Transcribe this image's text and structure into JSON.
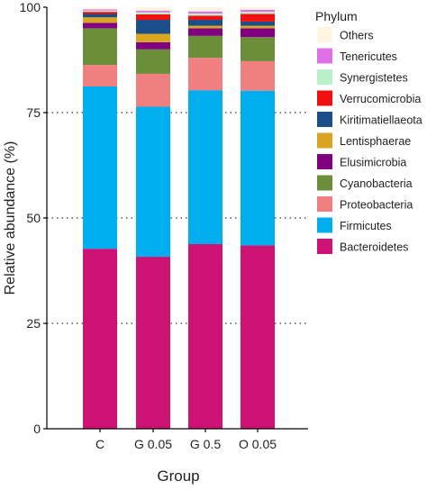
{
  "chart_data": {
    "type": "bar",
    "stacked": true,
    "xlabel": "Group",
    "ylabel": "Relative abundance (%)",
    "ylim": [
      0,
      100
    ],
    "yticks": [
      0,
      25,
      50,
      75,
      100
    ],
    "grid": "horizontal dotted",
    "legend_title": "Phylum",
    "legend_position": "right",
    "categories": [
      "C",
      "G 0.05",
      "G 0.5",
      "O 0.05"
    ],
    "series": [
      {
        "name": "Bacteroidetes",
        "color": "#CC1272",
        "values": [
          42.7,
          40.8,
          43.8,
          43.5
        ]
      },
      {
        "name": "Firmicutes",
        "color": "#00AEEF",
        "values": [
          38.5,
          35.6,
          36.5,
          36.7
        ]
      },
      {
        "name": "Proteobacteria",
        "color": "#F08080",
        "values": [
          5.1,
          7.8,
          7.7,
          7.0
        ]
      },
      {
        "name": "Cyanobacteria",
        "color": "#6B8E3A",
        "values": [
          8.7,
          5.8,
          5.2,
          5.7
        ]
      },
      {
        "name": "Elusimicrobia",
        "color": "#800080",
        "values": [
          1.3,
          1.7,
          1.8,
          2.1
        ]
      },
      {
        "name": "Lentisphaerae",
        "color": "#DAA520",
        "values": [
          1.3,
          2.0,
          0.6,
          0.6
        ]
      },
      {
        "name": "Kiritimatiellaeota",
        "color": "#1B4F8A",
        "values": [
          0.8,
          3.3,
          1.4,
          1.0
        ]
      },
      {
        "name": "Verrucomicrobia",
        "color": "#F01010",
        "values": [
          0.5,
          1.3,
          1.0,
          1.8
        ]
      },
      {
        "name": "Synergistetes",
        "color": "#B8F0C8",
        "values": [
          0.3,
          0.5,
          0.5,
          0.5
        ]
      },
      {
        "name": "Tenericutes",
        "color": "#E070E8",
        "values": [
          0.3,
          0.4,
          0.5,
          0.5
        ]
      },
      {
        "name": "Others",
        "color": "#FFF5E0",
        "values": [
          0.5,
          0.8,
          1.0,
          0.6
        ]
      }
    ],
    "legend_order": [
      "Others",
      "Tenericutes",
      "Synergistetes",
      "Verrucomicrobia",
      "Kiritimatiellaeota",
      "Lentisphaerae",
      "Elusimicrobia",
      "Cyanobacteria",
      "Proteobacteria",
      "Firmicutes",
      "Bacteroidetes"
    ]
  }
}
